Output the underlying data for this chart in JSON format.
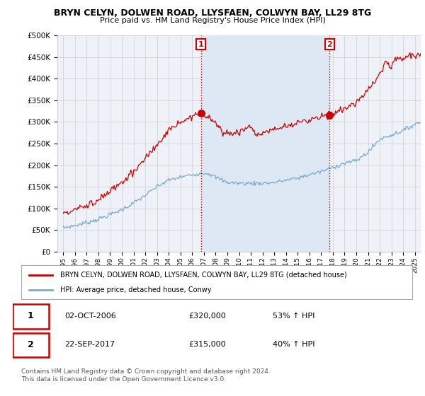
{
  "title1": "BRYN CELYN, DOLWEN ROAD, LLYSFAEN, COLWYN BAY, LL29 8TG",
  "title2": "Price paid vs. HM Land Registry's House Price Index (HPI)",
  "ylabel_ticks": [
    "£0",
    "£50K",
    "£100K",
    "£150K",
    "£200K",
    "£250K",
    "£300K",
    "£350K",
    "£400K",
    "£450K",
    "£500K"
  ],
  "ytick_values": [
    0,
    50000,
    100000,
    150000,
    200000,
    250000,
    300000,
    350000,
    400000,
    450000,
    500000
  ],
  "xlim": [
    1994.5,
    2025.5
  ],
  "ylim": [
    0,
    500000
  ],
  "sale1_x": 2006.75,
  "sale1_y": 320000,
  "sale1_date": "02-OCT-2006",
  "sale1_price": "£320,000",
  "sale1_hpi": "53% ↑ HPI",
  "sale2_x": 2017.72,
  "sale2_y": 315000,
  "sale2_date": "22-SEP-2017",
  "sale2_price": "£315,000",
  "sale2_hpi": "40% ↑ HPI",
  "line1_color": "#cc0000",
  "line2_color": "#7aaad0",
  "bg_color": "#eef2f8",
  "shade_color": "#dde8f4",
  "grid_color": "#cccccc",
  "legend_line1": "BRYN CELYN, DOLWEN ROAD, LLYSFAEN, COLWYN BAY, LL29 8TG (detached house)",
  "legend_line2": "HPI: Average price, detached house, Conwy",
  "footer1": "Contains HM Land Registry data © Crown copyright and database right 2024.",
  "footer2": "This data is licensed under the Open Government Licence v3.0."
}
